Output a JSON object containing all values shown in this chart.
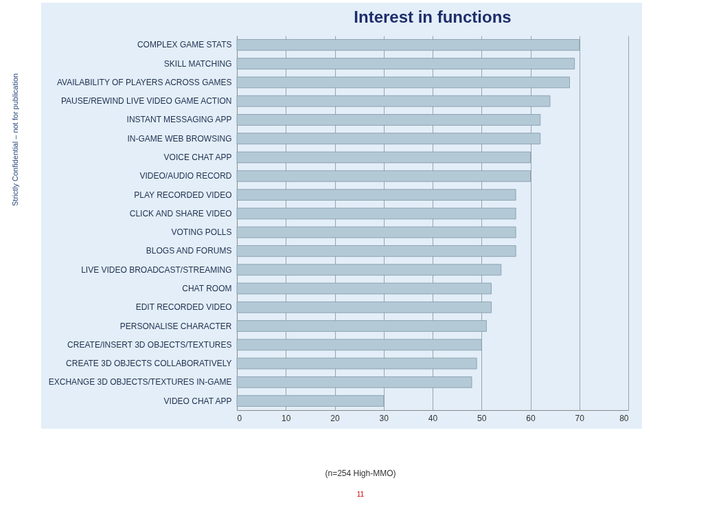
{
  "chart_data": {
    "type": "bar",
    "orientation": "horizontal",
    "title": "Interest in functions",
    "categories": [
      "COMPLEX GAME STATS",
      "SKILL MATCHING",
      "AVAILABILITY OF PLAYERS ACROSS GAMES",
      "PAUSE/REWIND LIVE VIDEO GAME ACTION",
      "INSTANT MESSAGING APP",
      "IN-GAME WEB BROWSING",
      "VOICE CHAT APP",
      "VIDEO/AUDIO RECORD",
      "PLAY RECORDED VIDEO",
      "CLICK AND SHARE VIDEO",
      "VOTING POLLS",
      "BLOGS AND FORUMS",
      "LIVE VIDEO BROADCAST/STREAMING",
      "CHAT ROOM",
      "EDIT RECORDED VIDEO",
      "PERSONALISE CHARACTER",
      "CREATE/INSERT 3D OBJECTS/TEXTURES",
      "CREATE 3D OBJECTS COLLABORATIVELY",
      "EXCHANGE 3D OBJECTS/TEXTURES IN-GAME",
      "VIDEO CHAT APP"
    ],
    "values": [
      70,
      69,
      68,
      64,
      62,
      62,
      60,
      60,
      57,
      57,
      57,
      57,
      54,
      52,
      52,
      51,
      50,
      49,
      48,
      30
    ],
    "color": "#b3c9d6",
    "xlim": [
      0,
      80
    ],
    "xticks": [
      0,
      10,
      20,
      30,
      40,
      50,
      60,
      70,
      80
    ],
    "grid": "x",
    "annotations": [
      "(n=254 High-MMO)",
      "11",
      "Strictly Confidential – not for publication"
    ]
  }
}
